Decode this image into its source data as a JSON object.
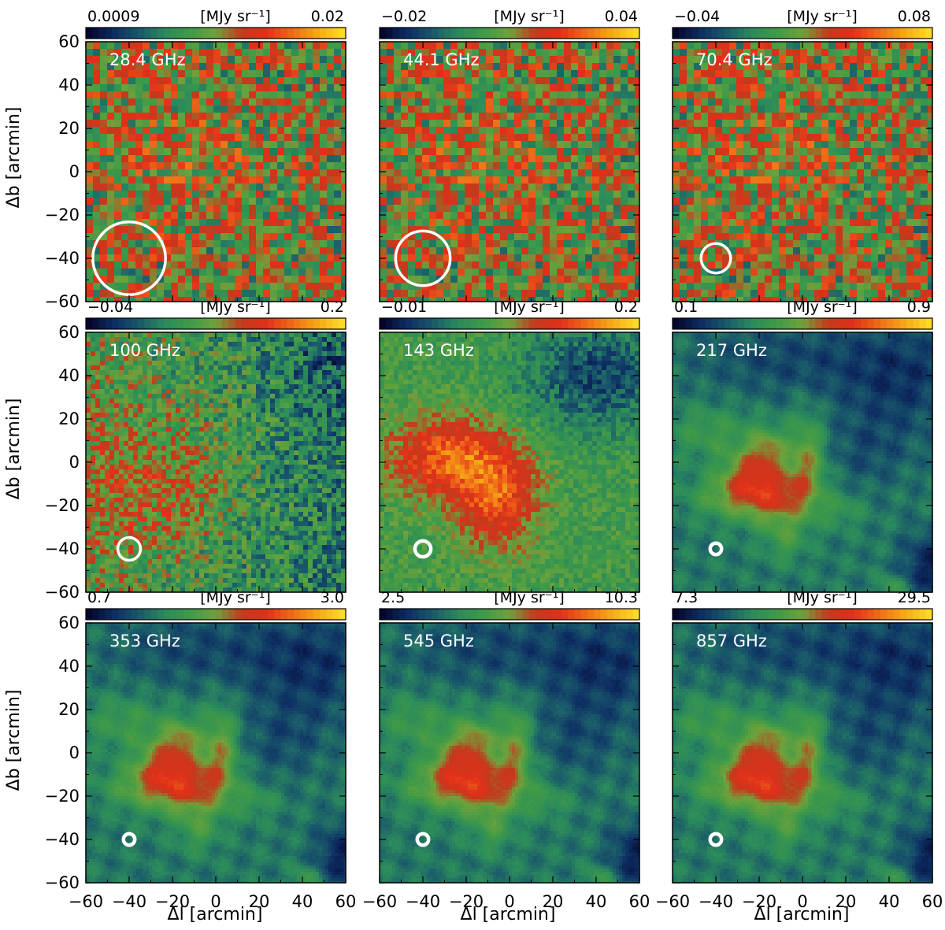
{
  "figure": {
    "ylabel": "Δb [arcmin]",
    "xlabel": "Δl [arcmin]",
    "unit": "[MJy sr⁻¹]"
  },
  "chart_data": {
    "type": "heatmap",
    "xlim": [
      -60,
      60
    ],
    "ylim": [
      -60,
      60
    ],
    "x_ticks": [
      "−60",
      "−40",
      "−20",
      "0",
      "20",
      "40",
      "60"
    ],
    "y_ticks": [
      "60",
      "40",
      "20",
      "0",
      "−20",
      "−40",
      "−60"
    ],
    "colormap": [
      "#05062d",
      "#0d2e63",
      "#1a5a6a",
      "#2b8a5c",
      "#3f9a48",
      "#6fa23b",
      "#c33a1c",
      "#e0301a",
      "#ef6a17",
      "#f5a716",
      "#ffd92a"
    ],
    "beam_center": [
      -40,
      -40
    ],
    "panels": [
      {
        "frequency": "28.4 GHz",
        "cbar_min": "0.0009",
        "cbar_max": "0.02",
        "beam_fwhm": 32,
        "style": "noisy",
        "pixel": 9
      },
      {
        "frequency": "44.1 GHz",
        "cbar_min": "−0.02",
        "cbar_max": "0.04",
        "beam_fwhm": 24,
        "style": "noisy",
        "pixel": 9
      },
      {
        "frequency": "70.4 GHz",
        "cbar_min": "−0.04",
        "cbar_max": "0.08",
        "beam_fwhm": 13,
        "style": "noisy",
        "pixel": 9
      },
      {
        "frequency": "100 GHz",
        "cbar_min": "−0.04",
        "cbar_max": "0.2",
        "beam_fwhm": 10,
        "style": "mid",
        "pixel": 6
      },
      {
        "frequency": "143 GHz",
        "cbar_min": "−0.01",
        "cbar_max": "0.2",
        "beam_fwhm": 7,
        "style": "mid143",
        "pixel": 6
      },
      {
        "frequency": "217 GHz",
        "cbar_min": "0.1",
        "cbar_max": "0.9",
        "beam_fwhm": 5,
        "style": "dust",
        "pixel": 4
      },
      {
        "frequency": "353 GHz",
        "cbar_min": "0.7",
        "cbar_max": "3.0",
        "beam_fwhm": 5,
        "style": "dust",
        "pixel": 4
      },
      {
        "frequency": "545 GHz",
        "cbar_min": "2.5",
        "cbar_max": "10.3",
        "beam_fwhm": 5,
        "style": "dust",
        "pixel": 4
      },
      {
        "frequency": "857 GHz",
        "cbar_min": "7.3",
        "cbar_max": "29.5",
        "beam_fwhm": 5,
        "style": "dust",
        "pixel": 4
      }
    ]
  }
}
